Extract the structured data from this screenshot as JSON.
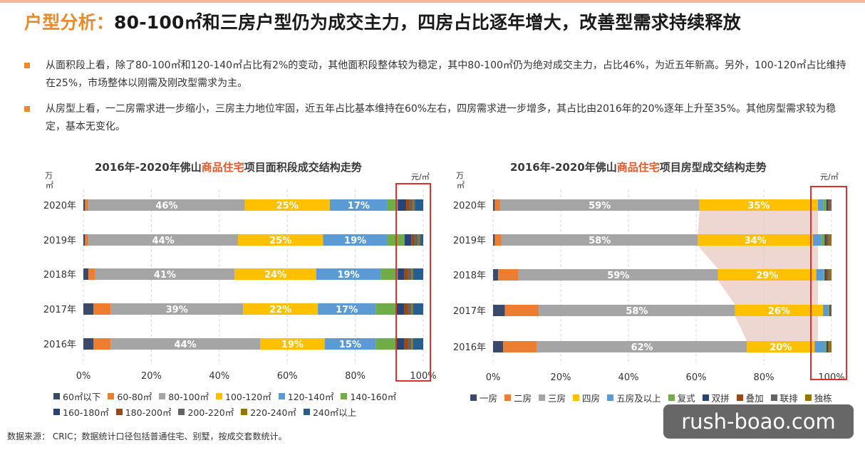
{
  "header": {
    "title_prefix": "户型分析：",
    "title_main": "80-100㎡和三房户型仍为成交主力，四房占比逐年增大，改善型需求持续释放"
  },
  "bullets": [
    "从面积段上看，除了80-100㎡和120-140㎡占比有2%的变动，其他面积段整体较为稳定，其中80-100㎡仍为绝对成交主力，占比46%，为近五年新高。另外，100-120㎡占比维持在25%，市场整体以刚需及刚改型需求为主。",
    "从房型上看，一二房需求进一步缩小，三房主力地位牢固，近五年占比基本维持在60%左右，四房需求进一步增多，其占比由2016年的20%逐年上升至35%。其他房型需求较为稳定，基本无变化。"
  ],
  "source": "数据来源： CRIC；数据统计口径包括普通住宅、别墅，按成交套数统计。",
  "watermark": "rush-boao.com",
  "chart_data": [
    {
      "type": "bar",
      "orientation": "horizontal",
      "stacked": true,
      "title_pre": "2016年-2020年佛山",
      "title_hl": "商品住宅",
      "title_post": "项目面积段成交结构走势",
      "unit_left_1": "万",
      "unit_left_2": "㎡",
      "unit_right": "元/㎡",
      "xlim": [
        0,
        100
      ],
      "xticks": [
        "0%",
        "20%",
        "40%",
        "60%",
        "80%",
        "100%"
      ],
      "legend_placement": "bottom",
      "categories": [
        "2020年",
        "2019年",
        "2018年",
        "2017年",
        "2016年"
      ],
      "series": [
        {
          "name": "60㎡以下",
          "color": "#3b4a6b",
          "values": [
            0.5,
            0.5,
            1.5,
            3,
            3
          ]
        },
        {
          "name": "60-80㎡",
          "color": "#ed7d31",
          "values": [
            1,
            1,
            2,
            5,
            5
          ]
        },
        {
          "name": "80-100㎡",
          "color": "#a5a5a5",
          "values": [
            46,
            44,
            41,
            39,
            44
          ],
          "labels": [
            "46%",
            "44%",
            "41%",
            "39%",
            "44%"
          ]
        },
        {
          "name": "100-120㎡",
          "color": "#ffc000",
          "values": [
            25,
            25,
            24,
            22,
            19
          ],
          "labels": [
            "25%",
            "25%",
            "24%",
            "22%",
            "19%"
          ]
        },
        {
          "name": "120-140㎡",
          "color": "#5b9bd5",
          "values": [
            17,
            19,
            19,
            17,
            15
          ],
          "labels": [
            "17%",
            "19%",
            "19%",
            "17%",
            "15%"
          ]
        },
        {
          "name": "140-160㎡",
          "color": "#70ad47",
          "values": [
            3,
            5,
            5,
            6,
            6
          ]
        },
        {
          "name": "160-180㎡",
          "color": "#264478",
          "values": [
            2.5,
            2,
            2,
            2.5,
            2.5
          ]
        },
        {
          "name": "180-200㎡",
          "color": "#9e480e",
          "values": [
            1,
            1,
            1,
            1,
            1
          ]
        },
        {
          "name": "200-220㎡",
          "color": "#636363",
          "values": [
            1,
            1,
            1,
            1,
            1
          ]
        },
        {
          "name": "220-240㎡",
          "color": "#997300",
          "values": [
            0.5,
            0.5,
            0.5,
            0.5,
            0.5
          ]
        },
        {
          "name": "240㎡以上",
          "color": "#255e91",
          "values": [
            2.5,
            1,
            3,
            3,
            3
          ]
        }
      ]
    },
    {
      "type": "bar",
      "orientation": "horizontal",
      "stacked": true,
      "title_pre": "2016年-2020年佛山",
      "title_hl": "商品住宅",
      "title_post": "项目房型成交结构走势",
      "unit_left_1": "万",
      "unit_left_2": "㎡",
      "unit_right": "元/㎡",
      "xlim": [
        0,
        100
      ],
      "xticks": [
        "0%",
        "20%",
        "40%",
        "60%",
        "80%",
        "100%"
      ],
      "legend_placement": "bottom",
      "categories": [
        "2020年",
        "2019年",
        "2018年",
        "2017年",
        "2016年"
      ],
      "series": [
        {
          "name": "一房",
          "color": "#3b4a6b",
          "values": [
            0.5,
            0.5,
            1.5,
            3.5,
            3
          ]
        },
        {
          "name": "二房",
          "color": "#ed7d31",
          "values": [
            1.5,
            2,
            6,
            10,
            10
          ]
        },
        {
          "name": "三房",
          "color": "#a5a5a5",
          "values": [
            59,
            58,
            59,
            58,
            62
          ],
          "labels": [
            "59%",
            "58%",
            "59%",
            "58%",
            "62%"
          ]
        },
        {
          "name": "四房",
          "color": "#ffc000",
          "values": [
            35,
            34,
            29,
            26,
            20
          ],
          "labels": [
            "35%",
            "34%",
            "29%",
            "26%",
            "20%"
          ]
        },
        {
          "name": "五房及以上",
          "color": "#5b9bd5",
          "values": [
            1.5,
            2.5,
            2,
            1.5,
            3
          ]
        },
        {
          "name": "复式",
          "color": "#70ad47",
          "values": [
            1,
            1,
            0.5,
            0.3,
            0.5
          ]
        },
        {
          "name": "双拼",
          "color": "#264478",
          "values": [
            0.5,
            0.5,
            0.5,
            0.2,
            0.5
          ]
        },
        {
          "name": "叠加",
          "color": "#9e480e",
          "values": [
            0.5,
            0.5,
            0.5,
            0.3,
            0.3
          ]
        },
        {
          "name": "联排",
          "color": "#636363",
          "values": [
            0.5,
            0.5,
            0.5,
            0.2,
            0.2
          ]
        },
        {
          "name": "独栋",
          "color": "#997300",
          "values": [
            0,
            0.5,
            0.5,
            0,
            0.5
          ]
        }
      ]
    }
  ]
}
